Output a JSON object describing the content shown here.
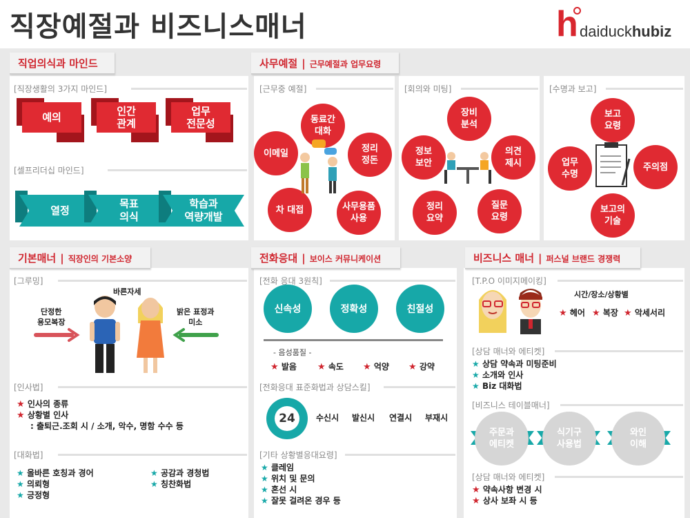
{
  "header": {
    "title": "직장예절과 비즈니스매너",
    "logo_h": "h",
    "logo_light": "daiduck",
    "logo_bold": "hubiz"
  },
  "colors": {
    "red": "#d0262f",
    "teal": "#17a8a8",
    "gray_band": "#e9e9e9"
  },
  "mind": {
    "title": "직업의식과 마인드",
    "three_label": "[직장생활의 3가지 마인드]",
    "three": [
      "예의",
      "인간\n관계",
      "업무\n전문성"
    ],
    "self_label": "[셀프리더십 마인드]",
    "self": [
      "열정",
      "목표\n의식",
      "학습과\n역량개발"
    ]
  },
  "office": {
    "title": "사무예절",
    "subtitle": "근무예절과 업무요령",
    "work_label": "[근무중 예절]",
    "work": [
      "동료간\n대화",
      "정리\n정돈",
      "사무용품\n사용",
      "차 대접",
      "이메일"
    ],
    "meeting_label": "[회의와 미팅]",
    "meeting": [
      "장비\n분석",
      "의견\n제시",
      "질문\n요령",
      "정리\n요약",
      "정보\n보안"
    ],
    "report_label": "[수명과 보고]",
    "report": [
      "보고\n요령",
      "주의점",
      "보고의\n기술",
      "업무\n수명"
    ]
  },
  "basic": {
    "title": "기본매너",
    "subtitle": "직장인의 기본소양",
    "grooming_label": "[그루밍]",
    "posture": "바른자세",
    "left_text": "단정한\n용모복장",
    "right_text": "밝은 표정과\n미소",
    "greeting_label": "[인사법]",
    "greeting_items": [
      "인사의 종류",
      "상황별 인사"
    ],
    "greeting_note": ": 출퇴근.조회 시 / 소개, 악수, 명함 수수 등",
    "talk_label": "[대화법]",
    "talk_col1": [
      "올바른 호칭과 경어",
      "의뢰형",
      "긍정형"
    ],
    "talk_col2": [
      "공감과 경청법",
      "칭찬화법"
    ]
  },
  "phone": {
    "title": "전화응대",
    "subtitle": "보이스 커뮤니케이션",
    "principles_label": "[전화 응대 3원칙]",
    "principles": [
      "신속성",
      "정확성",
      "친절성"
    ],
    "voice_label": "- 음성품질 -",
    "voice_items": [
      "발음",
      "속도",
      "억양",
      "강약"
    ],
    "standard_label": "[전화응대 표준화법과 상담스킬]",
    "badge": "24",
    "standard_items": [
      "수신시",
      "발신시",
      "연결시",
      "부재시"
    ],
    "other_label": "[기타 상황별응대요령]",
    "other_items": [
      "클레임",
      "위치 및 문의",
      "혼선 시",
      "잘못 걸려온 경우 등"
    ]
  },
  "biz": {
    "title": "비즈니스 매너",
    "subtitle": "퍼스널 브랜드 경쟁력",
    "tpo_label": "[T.P.O 이미지메이킹]",
    "tpo_heading": "시간/장소/상황별",
    "tpo_items": [
      "헤어",
      "복장",
      "악세서리"
    ],
    "consult_label": "[상담 매너와 에티켓]",
    "consult_items": [
      "상담 약속과 미팅준비",
      "소개와 인사",
      "Biz 대화법"
    ],
    "table_label": "[비즈니스 테이블매너]",
    "table_items": [
      "주문과\n에티켓",
      "식기구\n사용법",
      "와인\n이해"
    ],
    "consult2_label": "[상담 매너와 에티켓]",
    "consult2_items": [
      "약속사항 변경 시",
      "상사 보좌 시 등"
    ]
  }
}
